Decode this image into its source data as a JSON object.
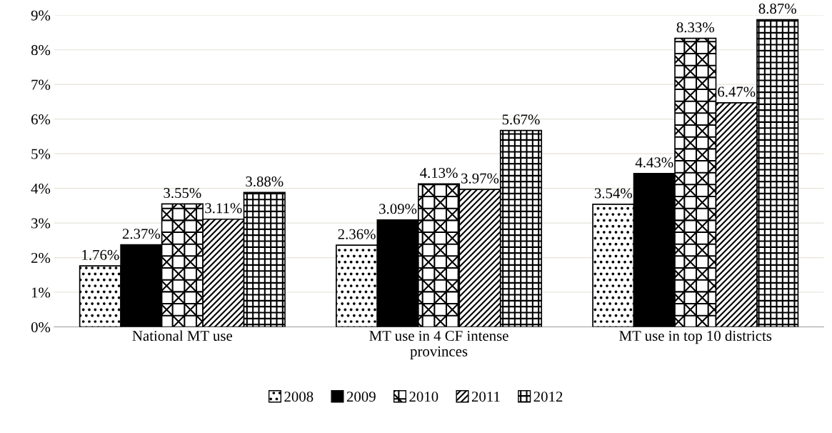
{
  "chart_data": {
    "type": "bar",
    "categories": [
      "National MT use",
      "MT use in 4 CF intense\nprovinces",
      "MT use in top 10 districts"
    ],
    "series": [
      {
        "name": "2008",
        "color": "#000000",
        "values": [
          1.76,
          2.36,
          3.54
        ],
        "value_labels": [
          "1.76%",
          "2.36%",
          "3.54%"
        ]
      },
      {
        "name": "2009",
        "color": "#000000",
        "values": [
          2.37,
          3.09,
          4.43
        ],
        "value_labels": [
          "2.37%",
          "3.09%",
          "4.43%"
        ]
      },
      {
        "name": "2010",
        "color": "#000000",
        "values": [
          3.55,
          4.13,
          8.33
        ],
        "value_labels": [
          "3.55%",
          "4.13%",
          "8.33%"
        ]
      },
      {
        "name": "2011",
        "color": "#000000",
        "values": [
          3.11,
          3.97,
          6.47
        ],
        "value_labels": [
          "3.11%",
          "3.97%",
          "6.47%"
        ]
      },
      {
        "name": "2012",
        "color": "#000000",
        "values": [
          3.88,
          5.67,
          8.87
        ],
        "value_labels": [
          "3.88%",
          "5.67%",
          "8.87%"
        ]
      }
    ],
    "ylim": [
      0,
      9
    ],
    "yticks": [
      {
        "value": 0,
        "label": "0%"
      },
      {
        "value": 1,
        "label": "1%"
      },
      {
        "value": 2,
        "label": "2%"
      },
      {
        "value": 3,
        "label": "3%"
      },
      {
        "value": 4,
        "label": "4%"
      },
      {
        "value": 5,
        "label": "5%"
      },
      {
        "value": 6,
        "label": "6%"
      },
      {
        "value": 7,
        "label": "7%"
      },
      {
        "value": 8,
        "label": "8%"
      },
      {
        "value": 9,
        "label": "9%"
      }
    ],
    "grid": "y",
    "legend": "bottom"
  }
}
